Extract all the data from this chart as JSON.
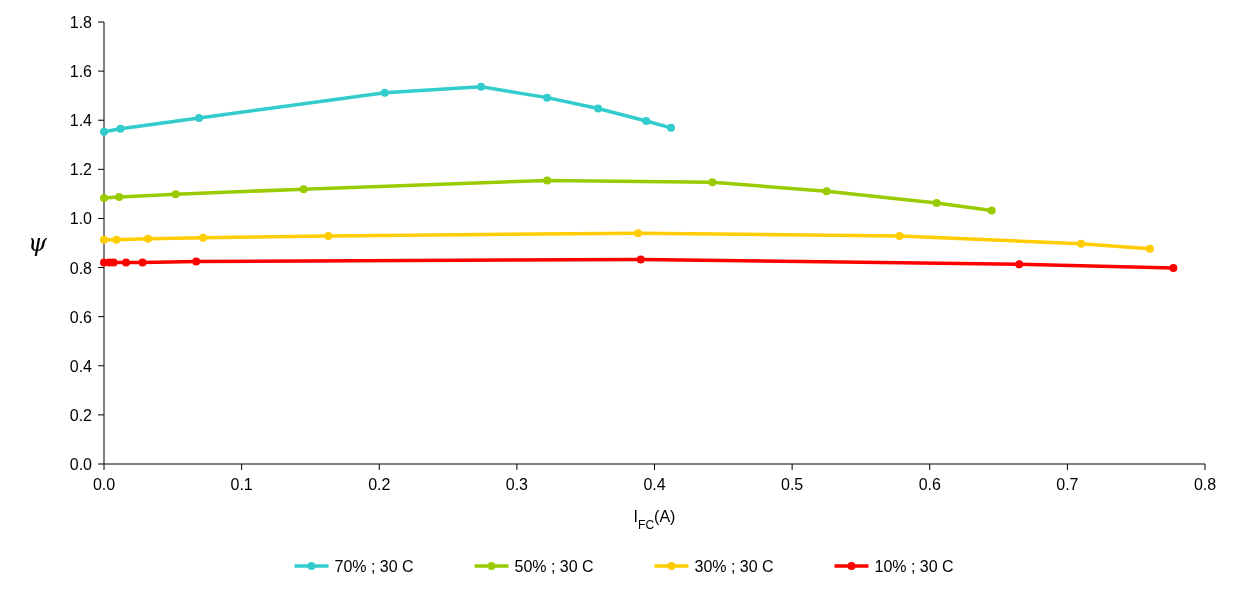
{
  "chart_data": {
    "type": "line",
    "xlabel": "I$_{FC}$(A)",
    "ylabel": "ψ",
    "xlim": [
      0,
      0.8
    ],
    "xticks": [
      {
        "value": 0,
        "label": "0.0"
      },
      0.1,
      0.2,
      0.3,
      0.4,
      0.5,
      0.6,
      0.7,
      0.8
    ],
    "ylim": [
      0,
      1.8
    ],
    "yticks": [
      {
        "value": 0,
        "label": "0.0"
      },
      0.2,
      0.4,
      0.6,
      0.8,
      {
        "value": 1,
        "label": "1.0"
      },
      1.2,
      1.4,
      1.6,
      1.8
    ],
    "grid": false,
    "legend": "bottom",
    "marker": "circle",
    "line_style": "solid",
    "series": [
      {
        "name": "70% ; 30 C",
        "color": "#33cccc",
        "x": [
          0,
          0.012,
          0.069,
          0.204,
          0.274,
          0.322,
          0.359,
          0.394,
          0.412
        ],
        "values": [
          1.353,
          1.365,
          1.409,
          1.512,
          1.536,
          1.492,
          1.448,
          1.397,
          1.369
        ]
      },
      {
        "name": "50% ; 30 C",
        "color": "#99cc00",
        "x": [
          0,
          0.011,
          0.052,
          0.145,
          0.322,
          0.442,
          0.525,
          0.605,
          0.645
        ],
        "values": [
          1.083,
          1.087,
          1.099,
          1.119,
          1.155,
          1.147,
          1.111,
          1.063,
          1.032
        ]
      },
      {
        "name": "30% ; 30 C",
        "color": "#ffcc00",
        "x": [
          0,
          0.009,
          0.032,
          0.072,
          0.163,
          0.388,
          0.578,
          0.71,
          0.76
        ],
        "values": [
          0.913,
          0.913,
          0.917,
          0.921,
          0.929,
          0.94,
          0.929,
          0.897,
          0.877
        ]
      },
      {
        "name": "10% ; 30 C",
        "color": "#ff0000",
        "x": [
          0,
          0.004,
          0.007,
          0.016,
          0.028,
          0.067,
          0.39,
          0.665,
          0.777
        ],
        "values": [
          0.821,
          0.821,
          0.821,
          0.821,
          0.821,
          0.825,
          0.833,
          0.813,
          0.798
        ]
      }
    ]
  }
}
